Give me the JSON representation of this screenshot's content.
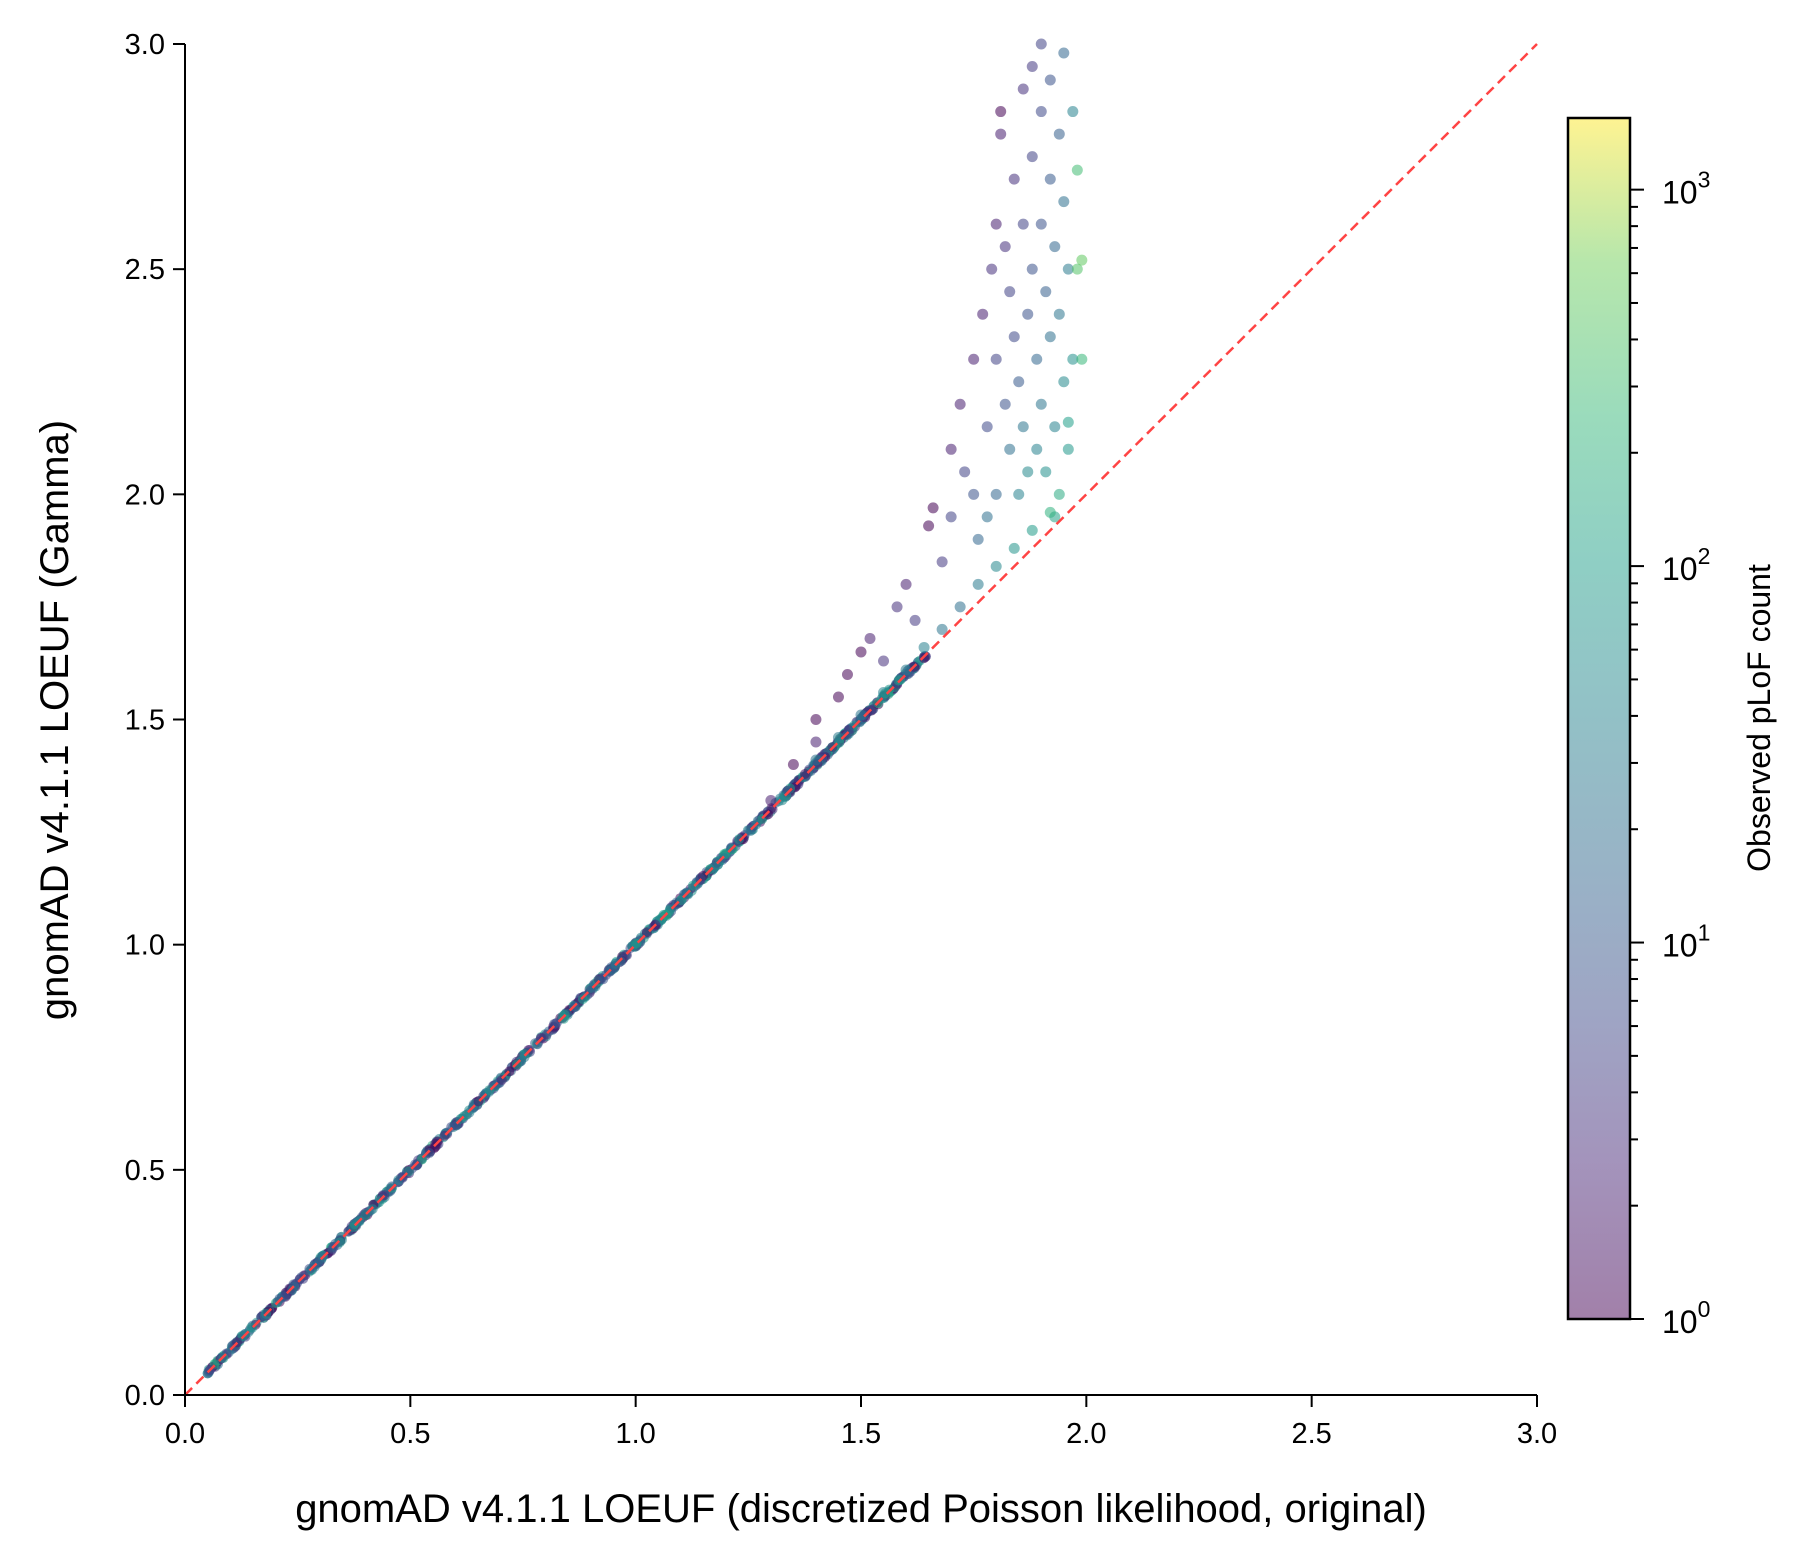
{
  "chart_data": {
    "type": "scatter",
    "xlabel": "gnomAD v4.1.1 LOEUF (discretized Poisson likelihood, original)",
    "ylabel": "gnomAD v4.1.1 LOEUF (Gamma)",
    "xlim": [
      0,
      3
    ],
    "ylim": [
      0,
      3
    ],
    "x_ticks": [
      "0.0",
      "0.5",
      "1.0",
      "1.5",
      "2.0",
      "2.5",
      "3.0"
    ],
    "y_ticks": [
      "0.0",
      "0.5",
      "1.0",
      "1.5",
      "2.0",
      "2.5",
      "3.0"
    ],
    "grid": false,
    "reference_line": {
      "type": "y=x",
      "style": "dashed",
      "color": "#ff4444"
    },
    "colorbar": {
      "label": "Observed pLoF count",
      "scale": "log",
      "colormap": "viridis",
      "range": [
        1,
        1550
      ],
      "ticks": [
        {
          "base": "10",
          "exp": "0",
          "value": 1
        },
        {
          "base": "10",
          "exp": "1",
          "value": 10
        },
        {
          "base": "10",
          "exp": "2",
          "value": 100
        },
        {
          "base": "10",
          "exp": "3",
          "value": 1000
        }
      ]
    },
    "point_alpha": 0.55,
    "points_columns": [
      "x",
      "y",
      "observed_pLoF"
    ],
    "points": [
      [
        1.3,
        1.32,
        2
      ],
      [
        1.35,
        1.4,
        1
      ],
      [
        1.4,
        1.45,
        2
      ],
      [
        1.4,
        1.5,
        1
      ],
      [
        1.45,
        1.55,
        1
      ],
      [
        1.47,
        1.6,
        1
      ],
      [
        1.5,
        1.65,
        1
      ],
      [
        1.52,
        1.68,
        2
      ],
      [
        1.55,
        1.63,
        3
      ],
      [
        1.58,
        1.75,
        3
      ],
      [
        1.6,
        1.8,
        2
      ],
      [
        1.62,
        1.72,
        4
      ],
      [
        1.65,
        1.93,
        1
      ],
      [
        1.66,
        1.97,
        1
      ],
      [
        1.68,
        1.85,
        4
      ],
      [
        1.7,
        2.1,
        2
      ],
      [
        1.7,
        1.95,
        5
      ],
      [
        1.72,
        2.2,
        2
      ],
      [
        1.73,
        2.05,
        5
      ],
      [
        1.75,
        2.3,
        2
      ],
      [
        1.75,
        2.0,
        8
      ],
      [
        1.76,
        1.9,
        15
      ],
      [
        1.77,
        2.4,
        2
      ],
      [
        1.78,
        2.15,
        6
      ],
      [
        1.78,
        1.95,
        20
      ],
      [
        1.79,
        2.5,
        3
      ],
      [
        1.8,
        2.6,
        2
      ],
      [
        1.8,
        2.3,
        5
      ],
      [
        1.8,
        2.0,
        15
      ],
      [
        1.81,
        2.8,
        2
      ],
      [
        1.81,
        2.85,
        1
      ],
      [
        1.82,
        2.55,
        3
      ],
      [
        1.82,
        2.2,
        8
      ],
      [
        1.83,
        2.45,
        5
      ],
      [
        1.83,
        2.1,
        20
      ],
      [
        1.84,
        2.7,
        3
      ],
      [
        1.84,
        2.35,
        6
      ],
      [
        1.85,
        2.0,
        40
      ],
      [
        1.85,
        2.25,
        10
      ],
      [
        1.86,
        2.9,
        3
      ],
      [
        1.86,
        2.6,
        5
      ],
      [
        1.86,
        2.15,
        25
      ],
      [
        1.87,
        2.4,
        8
      ],
      [
        1.87,
        2.05,
        50
      ],
      [
        1.88,
        2.95,
        4
      ],
      [
        1.88,
        2.75,
        5
      ],
      [
        1.88,
        2.5,
        8
      ],
      [
        1.89,
        2.3,
        15
      ],
      [
        1.89,
        2.1,
        40
      ],
      [
        1.9,
        3.0,
        5
      ],
      [
        1.9,
        2.85,
        6
      ],
      [
        1.9,
        2.6,
        8
      ],
      [
        1.9,
        2.2,
        25
      ],
      [
        1.91,
        2.45,
        12
      ],
      [
        1.91,
        2.05,
        60
      ],
      [
        1.92,
        2.92,
        8
      ],
      [
        1.92,
        2.7,
        10
      ],
      [
        1.92,
        2.35,
        20
      ],
      [
        1.93,
        2.55,
        15
      ],
      [
        1.93,
        2.15,
        40
      ],
      [
        1.93,
        1.95,
        120
      ],
      [
        1.94,
        2.8,
        12
      ],
      [
        1.94,
        2.4,
        25
      ],
      [
        1.95,
        2.98,
        15
      ],
      [
        1.95,
        2.65,
        20
      ],
      [
        1.95,
        2.25,
        50
      ],
      [
        1.96,
        2.5,
        30
      ],
      [
        1.96,
        2.1,
        80
      ],
      [
        1.97,
        2.85,
        40
      ],
      [
        1.97,
        2.3,
        60
      ],
      [
        1.98,
        2.72,
        300
      ],
      [
        1.98,
        2.5,
        400
      ],
      [
        1.99,
        2.3,
        250
      ],
      [
        1.99,
        2.52,
        500
      ],
      [
        1.96,
        2.16,
        100
      ],
      [
        1.94,
        2.0,
        150
      ],
      [
        1.92,
        1.96,
        200
      ],
      [
        1.88,
        1.92,
        90
      ],
      [
        1.84,
        1.88,
        70
      ],
      [
        1.8,
        1.84,
        45
      ],
      [
        1.76,
        1.8,
        30
      ],
      [
        1.72,
        1.75,
        20
      ],
      [
        1.68,
        1.7,
        25
      ],
      [
        1.64,
        1.66,
        35
      ],
      [
        1.6,
        1.61,
        30
      ],
      [
        1.55,
        1.56,
        40
      ],
      [
        1.5,
        1.51,
        25
      ],
      [
        1.45,
        1.46,
        30
      ],
      [
        1.4,
        1.41,
        20
      ]
    ]
  }
}
